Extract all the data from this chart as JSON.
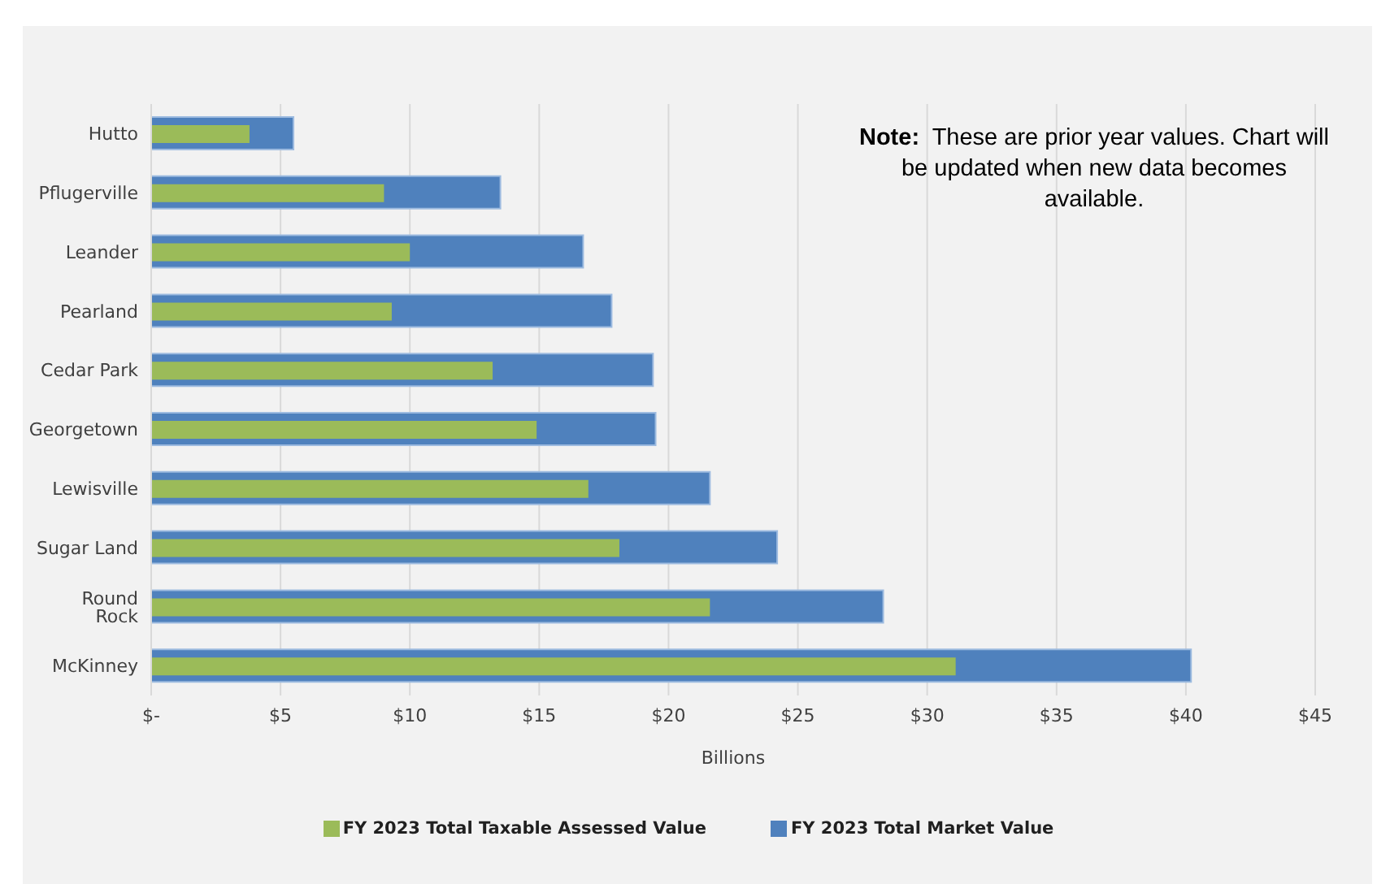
{
  "chart_data": {
    "type": "bar",
    "orientation": "horizontal",
    "xlabel": "Billions",
    "categories": [
      "Hutto",
      "Pflugerville",
      "Leander",
      "Pearland",
      "Cedar Park",
      "Georgetown",
      "Lewisville",
      "Sugar Land",
      "Round Rock",
      "McKinney"
    ],
    "series": [
      {
        "name": "FY 2023 Total Market Value",
        "color": "#4f81bd",
        "values": [
          5.5,
          13.5,
          16.7,
          17.8,
          19.4,
          19.5,
          21.6,
          24.2,
          28.3,
          40.2
        ]
      },
      {
        "name": "FY 2023 Total Taxable Assessed Value",
        "color": "#9bbb59",
        "values": [
          3.8,
          9.0,
          10.0,
          9.3,
          13.2,
          14.9,
          16.9,
          18.1,
          21.6,
          31.1
        ]
      }
    ],
    "xlim": [
      0,
      45
    ],
    "xticks": [
      {
        "value": 0,
        "label": "$-"
      },
      {
        "value": 5,
        "label": "$5"
      },
      {
        "value": 10,
        "label": "$10"
      },
      {
        "value": 15,
        "label": "$15"
      },
      {
        "value": 20,
        "label": "$20"
      },
      {
        "value": 25,
        "label": "$25"
      },
      {
        "value": 30,
        "label": "$30"
      },
      {
        "value": 35,
        "label": "$35"
      },
      {
        "value": 40,
        "label": "$40"
      },
      {
        "value": 45,
        "label": "$45"
      }
    ],
    "grid": "x",
    "legend": "bottom",
    "annotations": [
      "Note:  These are prior year values. Chart will be updated when new data becomes available."
    ]
  }
}
